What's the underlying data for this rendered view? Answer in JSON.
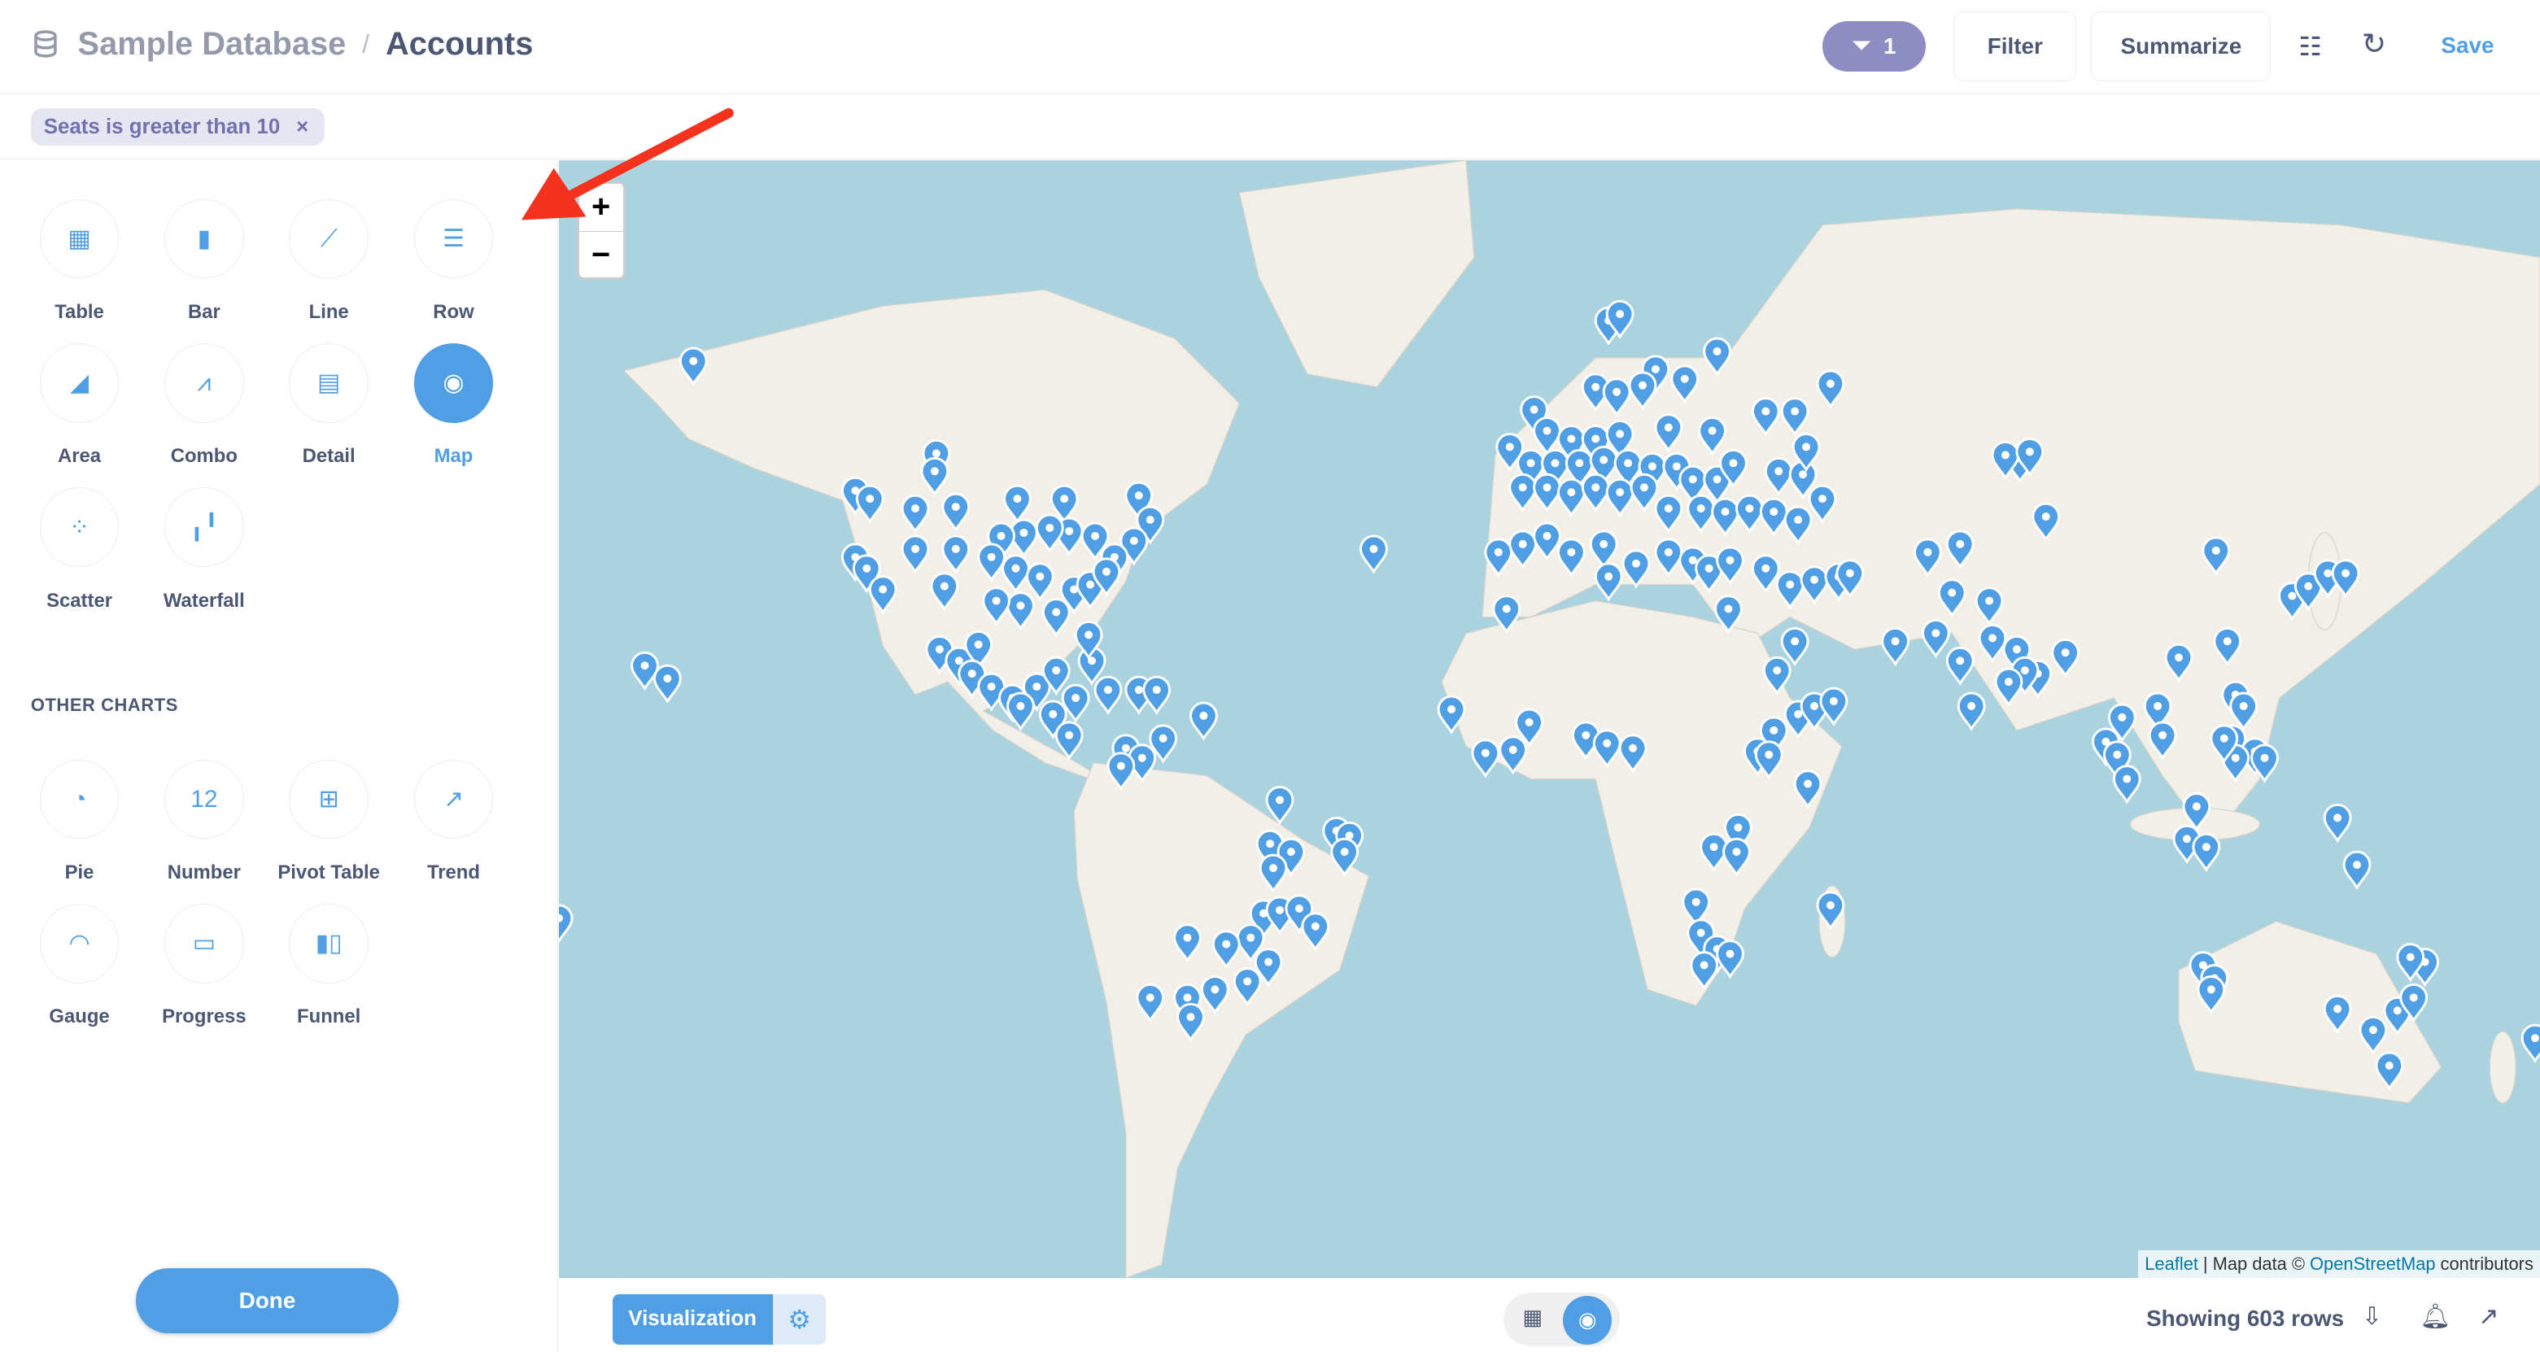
{
  "header": {
    "database": "Sample Database",
    "separator": "/",
    "table": "Accounts",
    "filter_count": "1",
    "filter_label": "Filter",
    "summarize_label": "Summarize",
    "save_label": "Save"
  },
  "filters": [
    {
      "label": "Seats is greater than 10",
      "remove": "×"
    }
  ],
  "sidebar": {
    "charts": [
      {
        "label": "Table",
        "icon": "table-icon",
        "glyph": "▦"
      },
      {
        "label": "Bar",
        "icon": "bar-chart-icon",
        "glyph": "▮"
      },
      {
        "label": "Line",
        "icon": "line-chart-icon",
        "glyph": "⟋"
      },
      {
        "label": "Row",
        "icon": "row-chart-icon",
        "glyph": "☰"
      },
      {
        "label": "Area",
        "icon": "area-chart-icon",
        "glyph": "◢"
      },
      {
        "label": "Combo",
        "icon": "combo-chart-icon",
        "glyph": "⩘"
      },
      {
        "label": "Detail",
        "icon": "detail-icon",
        "glyph": "▤"
      },
      {
        "label": "Map",
        "icon": "map-pin-icon",
        "glyph": "◉",
        "selected": true
      },
      {
        "label": "Scatter",
        "icon": "scatter-icon",
        "glyph": "⁘"
      },
      {
        "label": "Waterfall",
        "icon": "waterfall-icon",
        "glyph": "╻╹"
      }
    ],
    "other_charts_heading": "OTHER CHARTS",
    "other_charts": [
      {
        "label": "Pie",
        "icon": "pie-icon",
        "glyph": "◔"
      },
      {
        "label": "Number",
        "icon": "number-icon",
        "glyph": "12"
      },
      {
        "label": "Pivot Table",
        "icon": "pivot-table-icon",
        "glyph": "⊞"
      },
      {
        "label": "Trend",
        "icon": "trend-icon",
        "glyph": "↗"
      },
      {
        "label": "Gauge",
        "icon": "gauge-icon",
        "glyph": "◠"
      },
      {
        "label": "Progress",
        "icon": "progress-icon",
        "glyph": "▭"
      },
      {
        "label": "Funnel",
        "icon": "funnel-icon",
        "glyph": "▮▯"
      }
    ],
    "done_label": "Done"
  },
  "map": {
    "zoom_in": "+",
    "zoom_out": "−",
    "attribution": {
      "leaflet": "Leaflet",
      "sep": "|",
      "map_data": "Map data ©",
      "osm": "OpenStreetMap",
      "contributors": "contributors"
    },
    "water_color": "#aad3df",
    "land_color": "#f2efe9",
    "pin_color": "#509ee3"
  },
  "footer": {
    "visualization_label": "Visualization",
    "row_count": "Showing 603 rows"
  },
  "colors": {
    "accent": "#509ee3",
    "filter": "#8e8cc3",
    "annotation": "#f4321e"
  }
}
